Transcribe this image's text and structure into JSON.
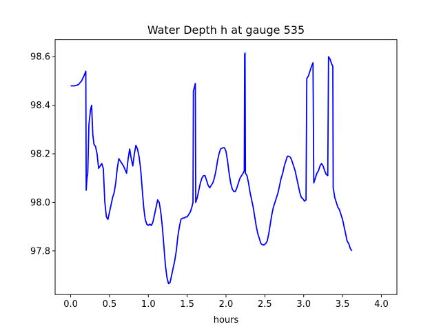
{
  "chart_data": {
    "type": "line",
    "title": "Water Depth h at gauge 535",
    "xlabel": "hours",
    "ylabel": "",
    "xlim": [
      -0.2,
      4.2
    ],
    "ylim": [
      97.62,
      98.67
    ],
    "grid": false,
    "legend": "none",
    "x_ticks": [
      {
        "value": 0.0,
        "label": "0.0"
      },
      {
        "value": 0.5,
        "label": "0.5"
      },
      {
        "value": 1.0,
        "label": "1.0"
      },
      {
        "value": 1.5,
        "label": "1.5"
      },
      {
        "value": 2.0,
        "label": "2.0"
      },
      {
        "value": 2.5,
        "label": "2.5"
      },
      {
        "value": 3.0,
        "label": "3.0"
      },
      {
        "value": 3.5,
        "label": "3.5"
      },
      {
        "value": 4.0,
        "label": "4.0"
      }
    ],
    "y_ticks": [
      {
        "value": 97.8,
        "label": "97.8"
      },
      {
        "value": 98.0,
        "label": "98.0"
      },
      {
        "value": 98.2,
        "label": "98.2"
      },
      {
        "value": 98.4,
        "label": "98.4"
      },
      {
        "value": 98.6,
        "label": "98.6"
      }
    ],
    "series": [
      {
        "color": "#0000ff",
        "points": [
          [
            0.0,
            98.48
          ],
          [
            0.05,
            98.48
          ],
          [
            0.1,
            98.485
          ],
          [
            0.14,
            98.5
          ],
          [
            0.17,
            98.52
          ],
          [
            0.195,
            98.54
          ],
          [
            0.2,
            98.05
          ],
          [
            0.21,
            98.1
          ],
          [
            0.22,
            98.12
          ],
          [
            0.235,
            98.32
          ],
          [
            0.255,
            98.38
          ],
          [
            0.27,
            98.4
          ],
          [
            0.285,
            98.28
          ],
          [
            0.3,
            98.24
          ],
          [
            0.32,
            98.23
          ],
          [
            0.34,
            98.2
          ],
          [
            0.36,
            98.14
          ],
          [
            0.38,
            98.15
          ],
          [
            0.4,
            98.16
          ],
          [
            0.42,
            98.14
          ],
          [
            0.44,
            98.0
          ],
          [
            0.46,
            97.94
          ],
          [
            0.48,
            97.93
          ],
          [
            0.5,
            97.96
          ],
          [
            0.54,
            98.02
          ],
          [
            0.56,
            98.04
          ],
          [
            0.58,
            98.08
          ],
          [
            0.6,
            98.14
          ],
          [
            0.62,
            98.18
          ],
          [
            0.64,
            98.17
          ],
          [
            0.68,
            98.15
          ],
          [
            0.72,
            98.12
          ],
          [
            0.74,
            98.18
          ],
          [
            0.76,
            98.22
          ],
          [
            0.78,
            98.18
          ],
          [
            0.8,
            98.15
          ],
          [
            0.82,
            98.2
          ],
          [
            0.84,
            98.235
          ],
          [
            0.86,
            98.22
          ],
          [
            0.88,
            98.19
          ],
          [
            0.9,
            98.14
          ],
          [
            0.92,
            98.06
          ],
          [
            0.94,
            97.98
          ],
          [
            0.96,
            97.93
          ],
          [
            0.98,
            97.91
          ],
          [
            1.0,
            97.905
          ],
          [
            1.02,
            97.91
          ],
          [
            1.04,
            97.905
          ],
          [
            1.06,
            97.92
          ],
          [
            1.08,
            97.95
          ],
          [
            1.1,
            97.98
          ],
          [
            1.12,
            98.01
          ],
          [
            1.14,
            98.0
          ],
          [
            1.16,
            97.96
          ],
          [
            1.18,
            97.9
          ],
          [
            1.2,
            97.82
          ],
          [
            1.22,
            97.74
          ],
          [
            1.24,
            97.69
          ],
          [
            1.26,
            97.665
          ],
          [
            1.28,
            97.67
          ],
          [
            1.3,
            97.7
          ],
          [
            1.32,
            97.73
          ],
          [
            1.34,
            97.76
          ],
          [
            1.36,
            97.8
          ],
          [
            1.38,
            97.86
          ],
          [
            1.4,
            97.9
          ],
          [
            1.42,
            97.93
          ],
          [
            1.44,
            97.935
          ],
          [
            1.46,
            97.935
          ],
          [
            1.48,
            97.94
          ],
          [
            1.5,
            97.94
          ],
          [
            1.52,
            97.95
          ],
          [
            1.54,
            97.96
          ],
          [
            1.56,
            97.98
          ],
          [
            1.575,
            98.0
          ],
          [
            1.58,
            98.46
          ],
          [
            1.59,
            98.47
          ],
          [
            1.605,
            98.49
          ],
          [
            1.61,
            98.0
          ],
          [
            1.63,
            98.02
          ],
          [
            1.65,
            98.05
          ],
          [
            1.67,
            98.08
          ],
          [
            1.69,
            98.1
          ],
          [
            1.71,
            98.11
          ],
          [
            1.73,
            98.11
          ],
          [
            1.75,
            98.09
          ],
          [
            1.77,
            98.07
          ],
          [
            1.79,
            98.06
          ],
          [
            1.81,
            98.07
          ],
          [
            1.83,
            98.08
          ],
          [
            1.85,
            98.1
          ],
          [
            1.87,
            98.13
          ],
          [
            1.89,
            98.17
          ],
          [
            1.91,
            98.2
          ],
          [
            1.93,
            98.22
          ],
          [
            1.96,
            98.225
          ],
          [
            1.98,
            98.225
          ],
          [
            2.0,
            98.21
          ],
          [
            2.02,
            98.17
          ],
          [
            2.04,
            98.12
          ],
          [
            2.06,
            98.08
          ],
          [
            2.08,
            98.055
          ],
          [
            2.1,
            98.045
          ],
          [
            2.12,
            98.045
          ],
          [
            2.14,
            98.06
          ],
          [
            2.16,
            98.08
          ],
          [
            2.18,
            98.1
          ],
          [
            2.2,
            98.11
          ],
          [
            2.22,
            98.12
          ],
          [
            2.235,
            98.13
          ],
          [
            2.24,
            98.61
          ],
          [
            2.245,
            98.615
          ],
          [
            2.25,
            98.12
          ],
          [
            2.27,
            98.11
          ],
          [
            2.29,
            98.08
          ],
          [
            2.31,
            98.04
          ],
          [
            2.33,
            98.01
          ],
          [
            2.35,
            97.98
          ],
          [
            2.37,
            97.94
          ],
          [
            2.39,
            97.9
          ],
          [
            2.41,
            97.87
          ],
          [
            2.43,
            97.85
          ],
          [
            2.45,
            97.83
          ],
          [
            2.47,
            97.825
          ],
          [
            2.49,
            97.825
          ],
          [
            2.51,
            97.83
          ],
          [
            2.53,
            97.84
          ],
          [
            2.55,
            97.87
          ],
          [
            2.57,
            97.91
          ],
          [
            2.59,
            97.95
          ],
          [
            2.61,
            97.98
          ],
          [
            2.63,
            98.0
          ],
          [
            2.65,
            98.02
          ],
          [
            2.67,
            98.04
          ],
          [
            2.69,
            98.07
          ],
          [
            2.71,
            98.1
          ],
          [
            2.73,
            98.12
          ],
          [
            2.75,
            98.15
          ],
          [
            2.77,
            98.17
          ],
          [
            2.79,
            98.19
          ],
          [
            2.81,
            98.19
          ],
          [
            2.83,
            98.185
          ],
          [
            2.85,
            98.17
          ],
          [
            2.87,
            98.15
          ],
          [
            2.89,
            98.13
          ],
          [
            2.91,
            98.1
          ],
          [
            2.93,
            98.07
          ],
          [
            2.95,
            98.04
          ],
          [
            2.97,
            98.02
          ],
          [
            2.99,
            98.015
          ],
          [
            3.01,
            98.005
          ],
          [
            3.03,
            98.01
          ],
          [
            3.04,
            98.51
          ],
          [
            3.06,
            98.52
          ],
          [
            3.08,
            98.54
          ],
          [
            3.1,
            98.56
          ],
          [
            3.12,
            98.575
          ],
          [
            3.13,
            98.08
          ],
          [
            3.15,
            98.1
          ],
          [
            3.17,
            98.12
          ],
          [
            3.19,
            98.13
          ],
          [
            3.21,
            98.15
          ],
          [
            3.23,
            98.16
          ],
          [
            3.25,
            98.15
          ],
          [
            3.27,
            98.13
          ],
          [
            3.29,
            98.115
          ],
          [
            3.31,
            98.11
          ],
          [
            3.32,
            98.6
          ],
          [
            3.34,
            98.59
          ],
          [
            3.36,
            98.57
          ],
          [
            3.375,
            98.56
          ],
          [
            3.38,
            98.06
          ],
          [
            3.4,
            98.02
          ],
          [
            3.42,
            98.0
          ],
          [
            3.44,
            97.98
          ],
          [
            3.46,
            97.97
          ],
          [
            3.48,
            97.95
          ],
          [
            3.5,
            97.93
          ],
          [
            3.52,
            97.9
          ],
          [
            3.54,
            97.87
          ],
          [
            3.56,
            97.84
          ],
          [
            3.58,
            97.83
          ],
          [
            3.6,
            97.81
          ],
          [
            3.62,
            97.8
          ]
        ]
      }
    ]
  }
}
